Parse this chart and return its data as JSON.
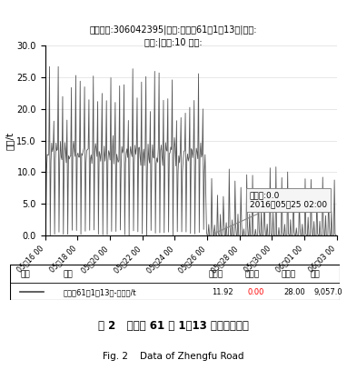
{
  "title_line1": "水表账号:306042395|户名:政府路61強1～13号|表号:",
  "title_line2": "口径:|厂家:10 地址:",
  "ylabel": "流量/t",
  "yticks": [
    0.0,
    5.0,
    10.0,
    15.0,
    20.0,
    25.0,
    30.0
  ],
  "ylim": [
    0.0,
    30.0
  ],
  "annotation_line1": "最小值:0.0",
  "annotation_line2": "2016－05－25 02:00",
  "fig2_label": "图 2   政府路 61 弹 1－13 号考核表数据",
  "fig2_caption": "Fig. 2    Data of Zhengfu Road",
  "line_color": "#444444",
  "annotation_box_color": "#f5f5f5",
  "xtick_labels": [
    "05－16 00",
    "05－18 00",
    "05－20 00",
    "05－22 00",
    "05－24 00",
    "05－26 00",
    "05－28 00",
    "05－30 00",
    "06－01 00",
    "06－03 00"
  ],
  "legend_col_颜色": "颜色",
  "legend_col_名称": "名称",
  "legend_col_平均值": "平均値",
  "legend_col_最小值": "最小値",
  "legend_col_最大值": "最大値",
  "legend_col_合计": "合计",
  "legend_name": "政府路61強1－13号-用水量/t",
  "legend_avg": "11.92",
  "legend_min": "0.00",
  "legend_max": "28.00",
  "legend_total": "9,057.0"
}
